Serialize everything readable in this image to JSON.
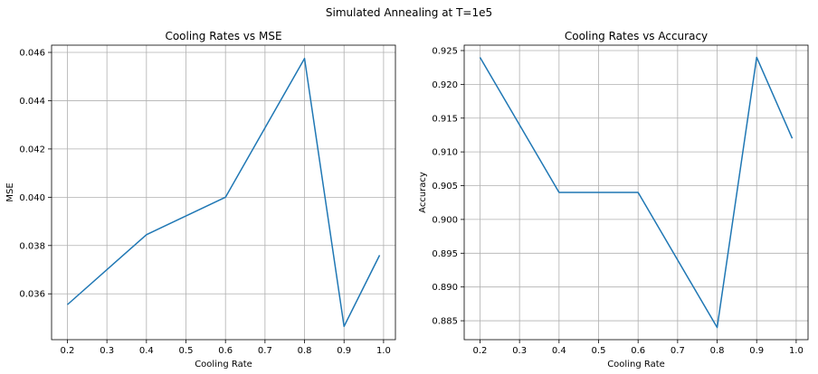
{
  "suptitle": "Simulated Annealing at T=1e5",
  "series_color": "#1f77b4",
  "grid_color": "#b0b0b0",
  "chart_data": [
    {
      "type": "line",
      "title": "Cooling Rates vs MSE",
      "xlabel": "Cooling Rate",
      "ylabel": "MSE",
      "xlim": [
        0.16,
        1.03
      ],
      "ylim": [
        0.0341,
        0.0463
      ],
      "grid": true,
      "xticks": [
        0.2,
        0.3,
        0.4,
        0.5,
        0.6,
        0.7,
        0.8,
        0.9,
        1.0
      ],
      "xtick_labels": [
        "0.2",
        "0.3",
        "0.4",
        "0.5",
        "0.6",
        "0.7",
        "0.8",
        "0.9",
        "1.0"
      ],
      "yticks": [
        0.036,
        0.038,
        0.04,
        0.042,
        0.044,
        0.046
      ],
      "ytick_labels": [
        "0.036",
        "0.038",
        "0.040",
        "0.042",
        "0.044",
        "0.046"
      ],
      "series": [
        {
          "x": [
            0.2,
            0.4,
            0.6,
            0.8,
            0.9,
            0.99
          ],
          "y": [
            0.03555,
            0.03845,
            0.04,
            0.04575,
            0.03465,
            0.0376
          ]
        }
      ]
    },
    {
      "type": "line",
      "title": "Cooling Rates vs Accuracy",
      "xlabel": "Cooling Rate",
      "ylabel": "Accuracy",
      "xlim": [
        0.16,
        1.03
      ],
      "ylim": [
        0.8822,
        0.9258
      ],
      "grid": true,
      "xticks": [
        0.2,
        0.3,
        0.4,
        0.5,
        0.6,
        0.7,
        0.8,
        0.9,
        1.0
      ],
      "xtick_labels": [
        "0.2",
        "0.3",
        "0.4",
        "0.5",
        "0.6",
        "0.7",
        "0.8",
        "0.9",
        "1.0"
      ],
      "yticks": [
        0.885,
        0.89,
        0.895,
        0.9,
        0.905,
        0.91,
        0.915,
        0.92,
        0.925
      ],
      "ytick_labels": [
        "0.885",
        "0.890",
        "0.895",
        "0.900",
        "0.905",
        "0.910",
        "0.915",
        "0.920",
        "0.925"
      ],
      "series": [
        {
          "x": [
            0.2,
            0.4,
            0.6,
            0.8,
            0.9,
            0.99
          ],
          "y": [
            0.924,
            0.904,
            0.904,
            0.884,
            0.924,
            0.912
          ]
        }
      ]
    }
  ]
}
